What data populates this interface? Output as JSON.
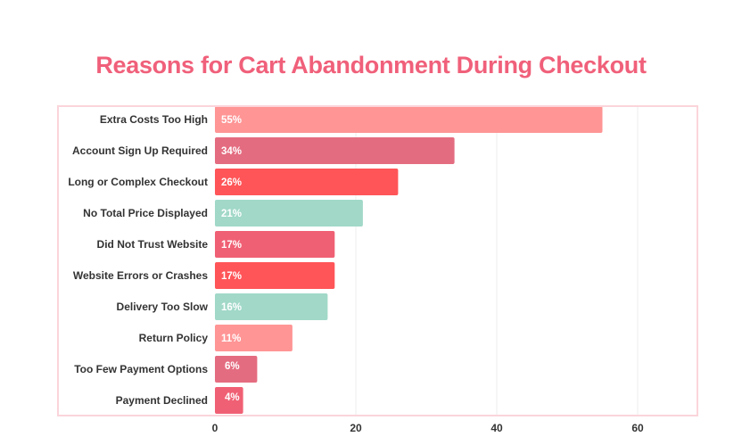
{
  "chart_data": {
    "type": "bar",
    "orientation": "horizontal",
    "title": "Reasons for Cart Abandonment During Checkout",
    "xlabel": "",
    "ylabel": "",
    "categories": [
      "Extra Costs Too High",
      "Account Sign Up  Required",
      "Long or Complex Checkout",
      "No Total Price Displayed",
      "Did Not Trust Website",
      "Website Errors or Crashes",
      "Delivery Too Slow",
      "Return Policy",
      "Too Few Payment Options",
      "Payment Declined"
    ],
    "values": [
      55,
      34,
      26,
      21,
      17,
      17,
      16,
      11,
      6,
      4
    ],
    "value_labels": [
      "55%",
      "34%",
      "26%",
      "21%",
      "17%",
      "17%",
      "16%",
      "11%",
      "6%",
      "4%"
    ],
    "bar_colors": [
      "#ff9595",
      "#e46c80",
      "#ff5558",
      "#a1d8c8",
      "#f06074",
      "#ff5558",
      "#a1d8c8",
      "#ff9595",
      "#e46c80",
      "#f06074"
    ],
    "xlim": [
      0,
      68
    ],
    "xticks": [
      0,
      20,
      40,
      60
    ],
    "xtick_labels": [
      "0",
      "20",
      "40",
      "60"
    ],
    "grid": true,
    "legend": "none"
  },
  "colors": {
    "title": "#f0607a",
    "frame": "#fbd5db",
    "grid": "#eeeeee",
    "label_text": "#333333",
    "value_text": "#ffffff"
  }
}
